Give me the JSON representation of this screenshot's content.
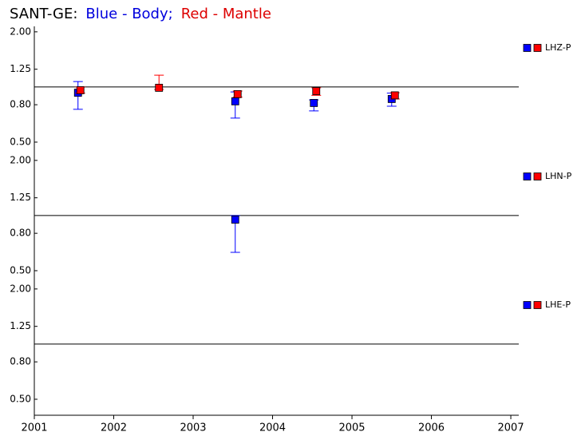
{
  "title_parts": [
    {
      "text": "SANT-GE:",
      "color": "#000000"
    },
    {
      "text": "Blue - Body;",
      "color": "#0000dd"
    },
    {
      "text": "Red - Mantle",
      "color": "#dd0000"
    }
  ],
  "chart_data": [
    {
      "type": "scatter",
      "name": "LHZ-P",
      "log_y": true,
      "hline": 1.0,
      "xlim": [
        2001,
        2007.1
      ],
      "xticks": [
        2001,
        2002,
        2003,
        2004,
        2005,
        2006,
        2007
      ],
      "ylim": [
        0.43,
        2.1
      ],
      "yticks": [
        {
          "value": 0.5,
          "label": "0.50"
        },
        {
          "value": 0.8,
          "label": "0.80"
        },
        {
          "value": 1.25,
          "label": "1.25"
        },
        {
          "value": 2.0,
          "label": "2.00"
        }
      ],
      "series": [
        {
          "color": "#0000ff",
          "x": [
            2001.55,
            2003.53,
            2004.52,
            2005.5
          ],
          "values": [
            0.93,
            0.835,
            0.818,
            0.86
          ],
          "low": [
            0.755,
            0.676,
            0.74,
            0.785
          ],
          "high": [
            1.07,
            0.94,
            0.85,
            0.925
          ]
        },
        {
          "color": "#ff0000",
          "x": [
            2001.58,
            2002.57,
            2003.56,
            2004.55,
            2005.54
          ],
          "values": [
            0.96,
            0.99,
            0.914,
            0.95,
            0.9
          ],
          "low": [
            0.925,
            0.97,
            0.88,
            0.9,
            0.86
          ],
          "high": [
            1.0,
            1.16,
            0.95,
            0.99,
            0.93
          ]
        }
      ]
    },
    {
      "type": "scatter",
      "name": "LHN-P",
      "log_y": true,
      "hline": 1.0,
      "xlim": [
        2001,
        2007.1
      ],
      "xticks": [
        2001,
        2002,
        2003,
        2004,
        2005,
        2006,
        2007
      ],
      "ylim": [
        0.43,
        2.1
      ],
      "yticks": [
        {
          "value": 0.5,
          "label": "0.50"
        },
        {
          "value": 0.8,
          "label": "0.80"
        },
        {
          "value": 1.25,
          "label": "1.25"
        },
        {
          "value": 2.0,
          "label": "2.00"
        }
      ],
      "series": [
        {
          "color": "#0000ff",
          "x": [
            2003.53
          ],
          "values": [
            0.95
          ],
          "low": [
            0.63
          ],
          "high": [
            1.0
          ]
        },
        {
          "color": "#ff0000",
          "x": [],
          "values": [],
          "low": [],
          "high": []
        }
      ]
    },
    {
      "type": "scatter",
      "name": "LHE-P",
      "log_y": true,
      "hline": 1.0,
      "xlim": [
        2001,
        2007.1
      ],
      "xticks": [
        2001,
        2002,
        2003,
        2004,
        2005,
        2006,
        2007
      ],
      "ylim": [
        0.43,
        2.1
      ],
      "yticks": [
        {
          "value": 0.5,
          "label": "0.50"
        },
        {
          "value": 0.8,
          "label": "0.80"
        },
        {
          "value": 1.25,
          "label": "1.25"
        },
        {
          "value": 2.0,
          "label": "2.00"
        }
      ],
      "series": [
        {
          "color": "#0000ff",
          "x": [],
          "values": [],
          "low": [],
          "high": []
        },
        {
          "color": "#ff0000",
          "x": [],
          "values": [],
          "low": [],
          "high": []
        }
      ]
    }
  ]
}
